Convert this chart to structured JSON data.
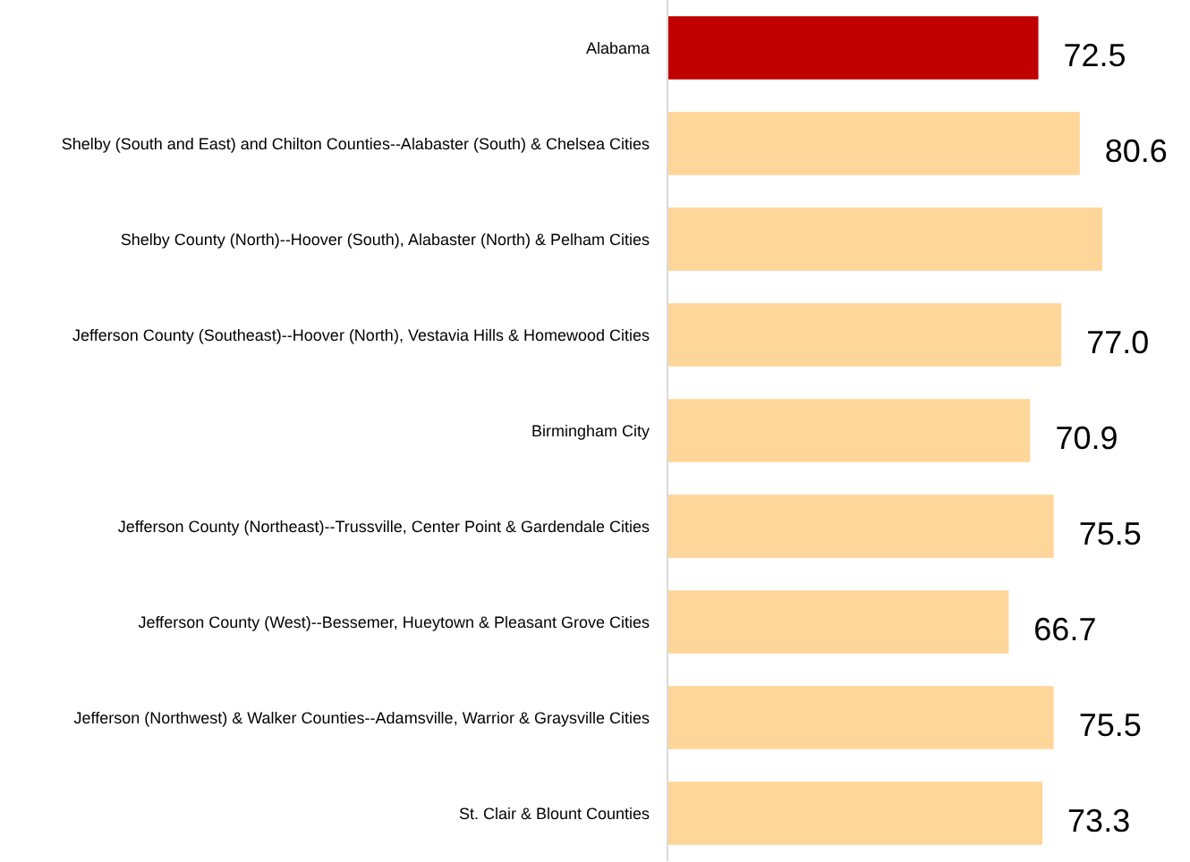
{
  "chart_data": {
    "type": "bar",
    "orientation": "horizontal",
    "categories": [
      "Alabama",
      "Shelby (South and East) and Chilton Counties--Alabaster (South) & Chelsea Cities",
      "Shelby County (North)--Hoover (South), Alabaster (North) & Pelham Cities",
      "Jefferson County (Southeast)--Hoover (North), Vestavia Hills & Homewood Cities",
      "Birmingham City",
      "Jefferson County (Northeast)--Trussville, Center Point & Gardendale Cities",
      "Jefferson County (West)--Bessemer, Hueytown & Pleasant Grove Cities",
      "Jefferson (Northwest) & Walker Counties--Adamsville, Warrior & Graysville Cities",
      "St. Clair & Blount Counties"
    ],
    "values": [
      72.5,
      80.6,
      85.0,
      77.0,
      70.9,
      75.5,
      66.7,
      75.5,
      73.3
    ],
    "value_labels": [
      "72.5",
      "80.6",
      null,
      "77.0",
      "70.9",
      "75.5",
      "66.7",
      "75.5",
      "73.3"
    ],
    "colors": [
      "#c00000",
      "#ffd699",
      "#ffd699",
      "#ffd699",
      "#ffd699",
      "#ffd699",
      "#ffd699",
      "#ffd699",
      "#ffd699"
    ],
    "data_labels": false
  }
}
